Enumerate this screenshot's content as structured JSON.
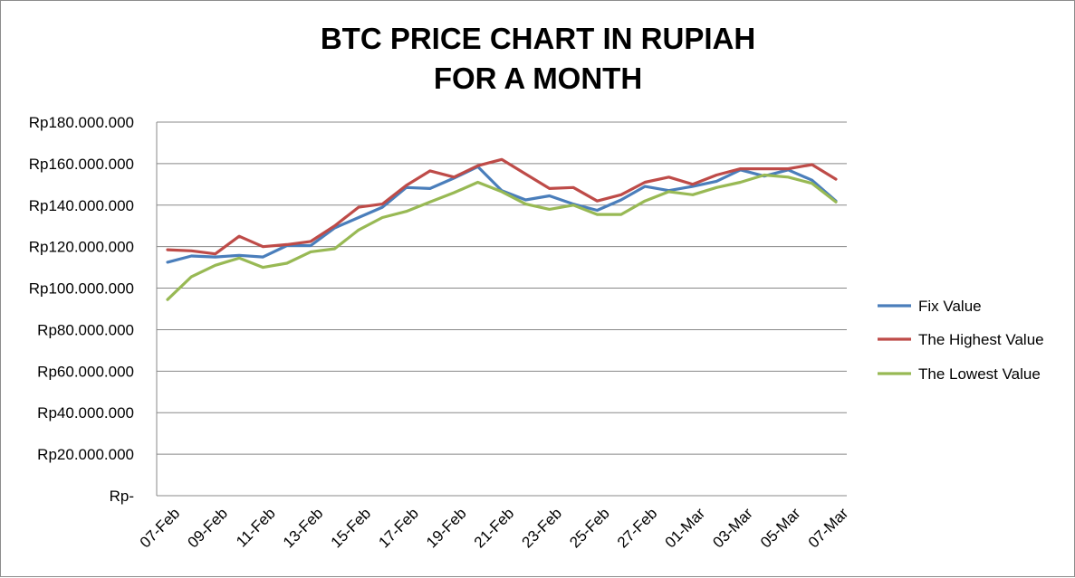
{
  "chart_data": {
    "type": "line",
    "title": "BTC PRICE CHART IN RUPIAH",
    "subtitle": "FOR A MONTH",
    "xlabel": "",
    "ylabel": "",
    "ylim": [
      0,
      180000000
    ],
    "y_ticks": [
      {
        "value": 0,
        "label": "Rp-"
      },
      {
        "value": 20000000,
        "label": "Rp20.000.000"
      },
      {
        "value": 40000000,
        "label": "Rp40.000.000"
      },
      {
        "value": 60000000,
        "label": "Rp60.000.000"
      },
      {
        "value": 80000000,
        "label": "Rp80.000.000"
      },
      {
        "value": 100000000,
        "label": "Rp100.000.000"
      },
      {
        "value": 120000000,
        "label": "Rp120.000.000"
      },
      {
        "value": 140000000,
        "label": "Rp140.000.000"
      },
      {
        "value": 160000000,
        "label": "Rp160.000.000"
      },
      {
        "value": 180000000,
        "label": "Rp180.000.000"
      }
    ],
    "grid": true,
    "legend_position": "right",
    "categories": [
      "07-Feb",
      "08-Feb",
      "09-Feb",
      "10-Feb",
      "11-Feb",
      "12-Feb",
      "13-Feb",
      "14-Feb",
      "15-Feb",
      "16-Feb",
      "17-Feb",
      "18-Feb",
      "19-Feb",
      "20-Feb",
      "21-Feb",
      "22-Feb",
      "23-Feb",
      "24-Feb",
      "25-Feb",
      "26-Feb",
      "27-Feb",
      "28-Feb",
      "01-Mar",
      "02-Mar",
      "03-Mar",
      "04-Mar",
      "05-Mar",
      "06-Mar",
      "07-Mar"
    ],
    "tick_labels": [
      "07-Feb",
      "09-Feb",
      "11-Feb",
      "13-Feb",
      "15-Feb",
      "17-Feb",
      "19-Feb",
      "21-Feb",
      "23-Feb",
      "25-Feb",
      "27-Feb",
      "01-Mar",
      "03-Mar",
      "05-Mar",
      "07-Mar"
    ],
    "series": [
      {
        "name": "Fix Value",
        "color": "#4a7ebb",
        "values": [
          112500000,
          115500000,
          115000000,
          115800000,
          115000000,
          120500000,
          120500000,
          129000000,
          134000000,
          139000000,
          148500000,
          148000000,
          153000000,
          158500000,
          147000000,
          142500000,
          144500000,
          140500000,
          137500000,
          142500000,
          149000000,
          147000000,
          149000000,
          151500000,
          157000000,
          154000000,
          157000000,
          152000000,
          142000000
        ]
      },
      {
        "name": "The Highest Value",
        "color": "#be4b48",
        "values": [
          118500000,
          118000000,
          116500000,
          125000000,
          120000000,
          121000000,
          122500000,
          130000000,
          139000000,
          140500000,
          149500000,
          156500000,
          153500000,
          159000000,
          162000000,
          155000000,
          148000000,
          148500000,
          142000000,
          145000000,
          151000000,
          153500000,
          150000000,
          154500000,
          157500000,
          157500000,
          157500000,
          159500000,
          152500000
        ]
      },
      {
        "name": "The Lowest Value",
        "color": "#98b954",
        "values": [
          94500000,
          105500000,
          111000000,
          114500000,
          110000000,
          112000000,
          117500000,
          119000000,
          128000000,
          134000000,
          137000000,
          141500000,
          146000000,
          151000000,
          146500000,
          140500000,
          138000000,
          140000000,
          135500000,
          135500000,
          142000000,
          146500000,
          145000000,
          148500000,
          151000000,
          154500000,
          153500000,
          150500000,
          141500000
        ]
      }
    ]
  }
}
